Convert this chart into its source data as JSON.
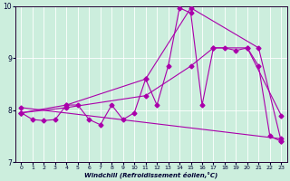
{
  "xlabel": "Windchill (Refroidissement éolien,°C)",
  "xlim": [
    -0.5,
    23.5
  ],
  "ylim": [
    7,
    10
  ],
  "yticks": [
    7,
    8,
    9,
    10
  ],
  "xticks": [
    0,
    1,
    2,
    3,
    4,
    5,
    6,
    7,
    8,
    9,
    10,
    11,
    12,
    13,
    14,
    15,
    16,
    17,
    18,
    19,
    20,
    21,
    22,
    23
  ],
  "background_color": "#cceedd",
  "line_color": "#aa00aa",
  "line1_x": [
    0,
    1,
    2,
    3,
    4,
    5,
    6,
    7,
    8,
    9,
    10,
    11,
    12,
    13,
    14,
    15,
    16,
    17,
    18,
    19,
    20,
    21,
    22,
    23
  ],
  "line1_y": [
    7.95,
    7.82,
    7.8,
    7.82,
    8.1,
    8.1,
    7.82,
    7.72,
    8.1,
    7.82,
    7.95,
    8.6,
    8.1,
    8.85,
    9.97,
    9.87,
    8.1,
    9.2,
    9.2,
    9.15,
    9.2,
    8.85,
    7.5,
    7.4
  ],
  "line2_x": [
    0,
    4,
    11,
    15,
    21,
    23
  ],
  "line2_y": [
    7.95,
    8.1,
    8.6,
    9.97,
    9.2,
    7.4
  ],
  "line3_x": [
    0,
    4,
    11,
    15,
    17,
    20,
    23
  ],
  "line3_y": [
    7.95,
    8.05,
    8.28,
    8.85,
    9.2,
    9.2,
    7.9
  ],
  "line4_x": [
    0,
    23
  ],
  "line4_y": [
    8.05,
    7.45
  ],
  "markersize": 2.5,
  "linewidth": 0.8
}
